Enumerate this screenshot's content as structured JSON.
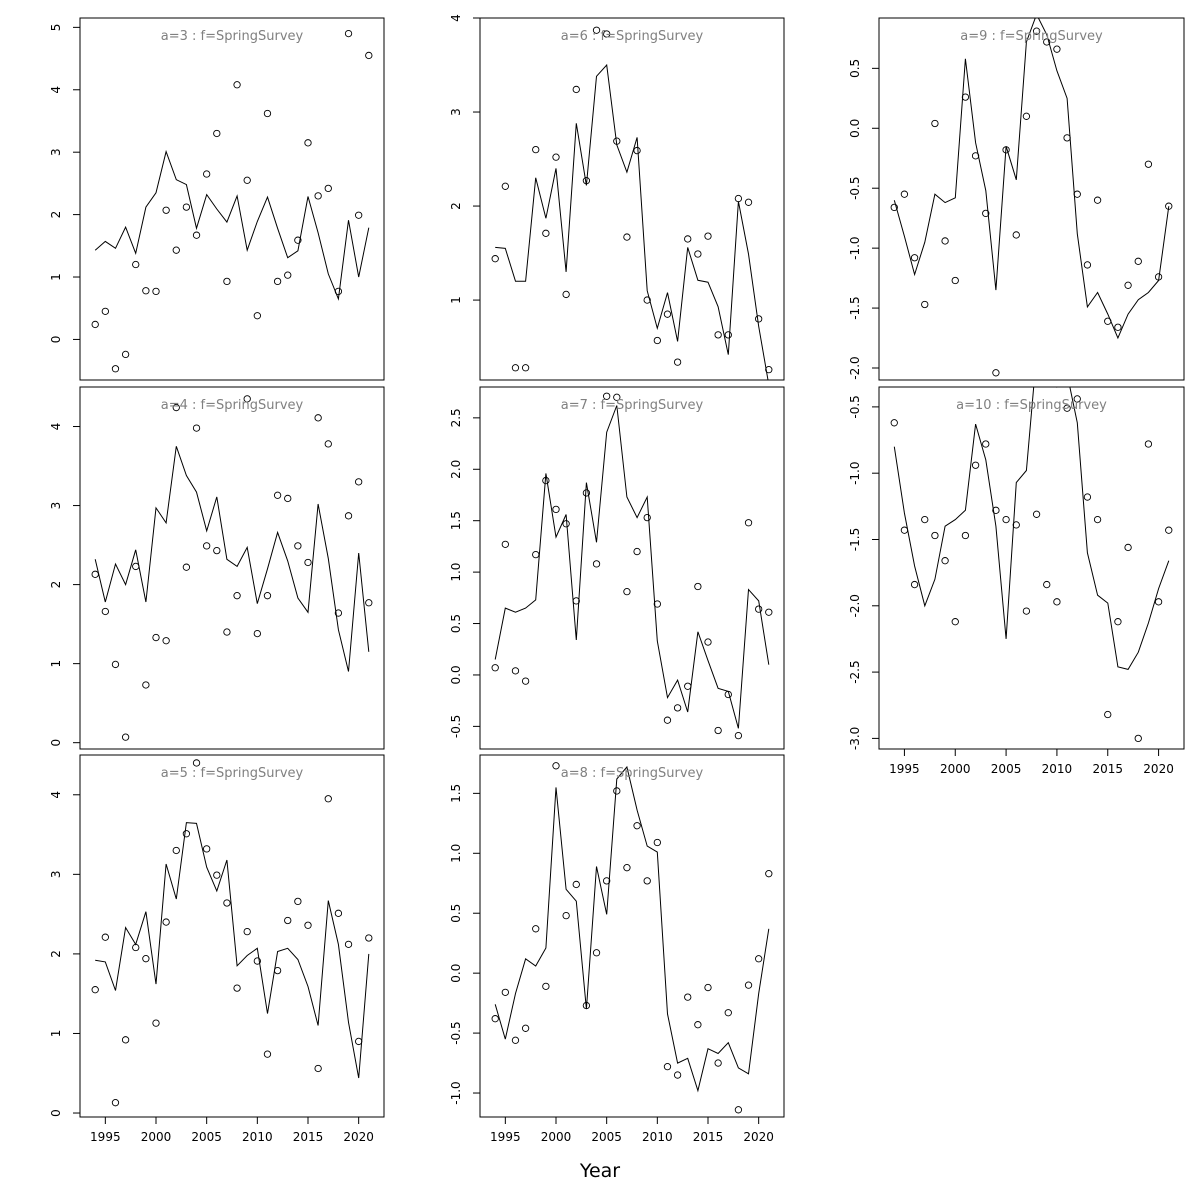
{
  "figure": {
    "xlabel": "Year"
  },
  "chart_data": [
    {
      "type": "scatter",
      "title": "a=3  :  f=SpringSurvey",
      "x": [
        1994,
        1995,
        1996,
        1997,
        1998,
        1999,
        2000,
        2001,
        2002,
        2003,
        2004,
        2005,
        2006,
        2007,
        2008,
        2009,
        2010,
        2011,
        2012,
        2013,
        2014,
        2015,
        2016,
        2017,
        2018,
        2019,
        2020,
        2021
      ],
      "observed": [
        0.24,
        0.45,
        -0.47,
        -0.24,
        1.2,
        0.78,
        0.77,
        2.07,
        1.43,
        2.12,
        1.67,
        2.65,
        3.3,
        0.93,
        4.08,
        2.55,
        0.38,
        3.62,
        0.93,
        1.03,
        1.59,
        3.15,
        2.3,
        2.42,
        0.77,
        4.9,
        1.99,
        4.55
      ],
      "fitted": [
        1.43,
        1.57,
        1.46,
        1.8,
        1.38,
        2.12,
        2.35,
        3.01,
        2.56,
        2.48,
        1.78,
        2.32,
        2.09,
        1.88,
        2.3,
        1.43,
        1.89,
        2.28,
        1.78,
        1.31,
        1.42,
        2.29,
        1.71,
        1.05,
        0.65,
        1.91,
        1.0,
        1.79
      ],
      "xlim": [
        1992.5,
        2022.5
      ],
      "ylim": [
        -0.65,
        5.15
      ],
      "yticks": [
        0,
        1,
        2,
        3,
        4,
        5
      ],
      "ytick_labels": [
        "0",
        "1",
        "2",
        "3",
        "4",
        "5"
      ],
      "xticks": [],
      "xtick_labels": []
    },
    {
      "type": "scatter",
      "title": "a=6  :  f=SpringSurvey",
      "x": [
        1994,
        1995,
        1996,
        1997,
        1998,
        1999,
        2000,
        2001,
        2002,
        2003,
        2004,
        2005,
        2006,
        2007,
        2008,
        2009,
        2010,
        2011,
        2012,
        2013,
        2014,
        2015,
        2016,
        2017,
        2018,
        2019,
        2020,
        2021
      ],
      "observed": [
        1.44,
        2.21,
        0.28,
        0.28,
        2.6,
        1.71,
        2.52,
        1.06,
        3.24,
        2.27,
        3.87,
        3.83,
        2.69,
        1.67,
        2.59,
        1.0,
        0.57,
        0.85,
        0.34,
        1.65,
        1.49,
        1.68,
        0.63,
        0.63,
        2.08,
        2.04,
        0.8,
        0.26
      ],
      "fitted": [
        1.56,
        1.55,
        1.2,
        1.2,
        2.3,
        1.87,
        2.4,
        1.3,
        2.88,
        2.22,
        3.38,
        3.5,
        2.65,
        2.36,
        2.73,
        1.1,
        0.7,
        1.08,
        0.56,
        1.56,
        1.21,
        1.19,
        0.93,
        0.42,
        2.05,
        1.49,
        0.72,
        0.1
      ],
      "xlim": [
        1992.5,
        2022.5
      ],
      "ylim": [
        0.15,
        4.0
      ],
      "yticks": [
        1,
        2,
        3,
        4
      ],
      "ytick_labels": [
        "1",
        "2",
        "3",
        "4"
      ],
      "xticks": [],
      "xtick_labels": []
    },
    {
      "type": "scatter",
      "title": "a=9  :  f=SpringSurvey",
      "x": [
        1994,
        1995,
        1996,
        1997,
        1998,
        1999,
        2000,
        2001,
        2002,
        2003,
        2004,
        2005,
        2006,
        2007,
        2008,
        2009,
        2010,
        2011,
        2012,
        2013,
        2014,
        2015,
        2016,
        2017,
        2018,
        2019,
        2020,
        2021
      ],
      "observed": [
        -0.66,
        -0.55,
        -1.08,
        -1.47,
        0.04,
        -0.94,
        -1.27,
        0.26,
        -0.23,
        -0.71,
        -2.04,
        -0.18,
        -0.89,
        0.1,
        0.81,
        0.72,
        0.66,
        -0.08,
        -0.55,
        -1.14,
        -0.6,
        -1.61,
        -1.66,
        -1.31,
        -1.11,
        -0.3,
        -1.24,
        -0.65
      ],
      "fitted": [
        -0.6,
        -0.9,
        -1.22,
        -0.95,
        -0.55,
        -0.62,
        -0.58,
        0.58,
        -0.12,
        -0.52,
        -1.35,
        -0.15,
        -0.43,
        0.72,
        0.95,
        0.78,
        0.48,
        0.25,
        -0.88,
        -1.49,
        -1.37,
        -1.55,
        -1.75,
        -1.55,
        -1.43,
        -1.37,
        -1.27,
        -0.65
      ],
      "xlim": [
        1992.5,
        2022.5
      ],
      "ylim": [
        -2.1,
        0.92
      ],
      "yticks": [
        -2.0,
        -1.5,
        -1.0,
        -0.5,
        0.0,
        0.5
      ],
      "ytick_labels": [
        "-2.0",
        "-1.5",
        "-1.0",
        "-0.5",
        "0.0",
        "0.5"
      ],
      "xticks": [],
      "xtick_labels": []
    },
    {
      "type": "scatter",
      "title": "a=4  :  f=SpringSurvey",
      "x": [
        1994,
        1995,
        1996,
        1997,
        1998,
        1999,
        2000,
        2001,
        2002,
        2003,
        2004,
        2005,
        2006,
        2007,
        2008,
        2009,
        2010,
        2011,
        2012,
        2013,
        2014,
        2015,
        2016,
        2017,
        2018,
        2019,
        2020,
        2021
      ],
      "observed": [
        2.13,
        1.66,
        0.99,
        0.07,
        2.23,
        0.73,
        1.33,
        1.29,
        4.24,
        2.22,
        3.98,
        2.49,
        2.43,
        1.4,
        1.86,
        4.35,
        1.38,
        1.86,
        3.13,
        3.09,
        2.49,
        2.28,
        4.11,
        3.78,
        1.64,
        2.87,
        3.3,
        1.77
      ],
      "fitted": [
        2.32,
        1.78,
        2.26,
        2.0,
        2.44,
        1.78,
        2.97,
        2.78,
        3.75,
        3.38,
        3.17,
        2.68,
        3.11,
        2.32,
        2.23,
        2.47,
        1.76,
        2.2,
        2.66,
        2.3,
        1.83,
        1.65,
        3.02,
        2.33,
        1.43,
        0.9,
        2.4,
        1.15
      ],
      "xlim": [
        1992.5,
        2022.5
      ],
      "ylim": [
        -0.08,
        4.5
      ],
      "yticks": [
        0,
        1,
        2,
        3,
        4
      ],
      "ytick_labels": [
        "0",
        "1",
        "2",
        "3",
        "4"
      ],
      "xticks": [],
      "xtick_labels": []
    },
    {
      "type": "scatter",
      "title": "a=7  :  f=SpringSurvey",
      "x": [
        1994,
        1995,
        1996,
        1997,
        1998,
        1999,
        2000,
        2001,
        2002,
        2003,
        2004,
        2005,
        2006,
        2007,
        2008,
        2009,
        2010,
        2011,
        2012,
        2013,
        2014,
        2015,
        2016,
        2017,
        2018,
        2019,
        2020,
        2021
      ],
      "observed": [
        0.07,
        1.27,
        0.04,
        -0.06,
        1.17,
        1.89,
        1.61,
        1.47,
        0.72,
        1.77,
        1.08,
        2.71,
        2.7,
        0.81,
        1.2,
        1.53,
        0.69,
        -0.44,
        -0.32,
        -0.11,
        0.86,
        0.32,
        -0.54,
        -0.19,
        -0.59,
        1.48,
        0.64,
        0.61
      ],
      "fitted": [
        0.15,
        0.65,
        0.61,
        0.65,
        0.73,
        1.96,
        1.34,
        1.56,
        0.34,
        1.87,
        1.29,
        2.36,
        2.62,
        1.73,
        1.53,
        1.73,
        0.33,
        -0.22,
        -0.05,
        -0.36,
        0.42,
        0.14,
        -0.13,
        -0.16,
        -0.52,
        0.83,
        0.72,
        0.1
      ],
      "xlim": [
        1992.5,
        2022.5
      ],
      "ylim": [
        -0.72,
        2.8
      ],
      "yticks": [
        -0.5,
        0.0,
        0.5,
        1.0,
        1.5,
        2.0,
        2.5
      ],
      "ytick_labels": [
        "-0.5",
        "0.0",
        "0.5",
        "1.0",
        "1.5",
        "2.0",
        "2.5"
      ],
      "xticks": [],
      "xtick_labels": []
    },
    {
      "type": "scatter",
      "title": "a=10  :  f=SpringSurvey",
      "x": [
        1994,
        1995,
        1996,
        1997,
        1998,
        1999,
        2000,
        2001,
        2002,
        2003,
        2004,
        2005,
        2006,
        2007,
        2008,
        2009,
        2010,
        2011,
        2012,
        2013,
        2014,
        2015,
        2016,
        2017,
        2018,
        2019,
        2020,
        2021
      ],
      "observed": [
        -0.62,
        -1.43,
        -1.84,
        -1.35,
        -1.47,
        -1.66,
        -2.12,
        -1.47,
        -0.94,
        -0.78,
        -1.28,
        -1.35,
        -1.39,
        -2.04,
        -1.31,
        -1.84,
        -1.97,
        -0.51,
        -0.44,
        -1.18,
        -1.35,
        -2.82,
        -2.12,
        -1.56,
        -3.0,
        -0.78,
        -1.97,
        -1.43
      ],
      "fitted": [
        -0.8,
        -1.3,
        -1.7,
        -2.0,
        -1.8,
        -1.4,
        -1.35,
        -1.28,
        -0.63,
        -0.9,
        -1.4,
        -2.25,
        -1.07,
        -0.98,
        -0.1,
        -0.25,
        -0.35,
        -0.25,
        -0.62,
        -1.6,
        -1.92,
        -1.98,
        -2.46,
        -2.48,
        -2.35,
        -2.13,
        -1.87,
        -1.66
      ],
      "xlim": [
        1992.5,
        2022.5
      ],
      "ylim": [
        -3.08,
        -0.35
      ],
      "yticks": [
        -3.0,
        -2.5,
        -2.0,
        -1.5,
        -1.0,
        -0.5
      ],
      "ytick_labels": [
        "-3.0",
        "-2.5",
        "-2.0",
        "-1.5",
        "-1.0",
        "-0.5"
      ],
      "xticks": [
        1995,
        2000,
        2005,
        2010,
        2015,
        2020
      ],
      "xtick_labels": [
        "1995",
        "2000",
        "2005",
        "2010",
        "2015",
        "2020"
      ]
    },
    {
      "type": "scatter",
      "title": "a=5  :  f=SpringSurvey",
      "x": [
        1994,
        1995,
        1996,
        1997,
        1998,
        1999,
        2000,
        2001,
        2002,
        2003,
        2004,
        2005,
        2006,
        2007,
        2008,
        2009,
        2010,
        2011,
        2012,
        2013,
        2014,
        2015,
        2016,
        2017,
        2018,
        2019,
        2020,
        2021
      ],
      "observed": [
        1.55,
        2.21,
        0.13,
        0.92,
        2.08,
        1.94,
        1.13,
        2.4,
        3.3,
        3.51,
        4.4,
        3.32,
        2.99,
        2.64,
        1.57,
        2.28,
        1.91,
        0.74,
        1.79,
        2.42,
        2.66,
        2.36,
        0.56,
        3.95,
        2.51,
        2.12,
        0.9,
        2.2
      ],
      "fitted": [
        1.92,
        1.9,
        1.54,
        2.33,
        2.12,
        2.53,
        1.62,
        3.13,
        2.69,
        3.65,
        3.64,
        3.09,
        2.79,
        3.18,
        1.85,
        1.98,
        2.07,
        1.25,
        2.03,
        2.07,
        1.93,
        1.59,
        1.1,
        2.67,
        2.12,
        1.14,
        0.44,
        2.0
      ],
      "xlim": [
        1992.5,
        2022.5
      ],
      "ylim": [
        -0.05,
        4.5
      ],
      "yticks": [
        0,
        1,
        2,
        3,
        4
      ],
      "ytick_labels": [
        "0",
        "1",
        "2",
        "3",
        "4"
      ],
      "xticks": [
        1995,
        2000,
        2005,
        2010,
        2015,
        2020
      ],
      "xtick_labels": [
        "1995",
        "2000",
        "2005",
        "2010",
        "2015",
        "2020"
      ]
    },
    {
      "type": "scatter",
      "title": "a=8  :  f=SpringSurvey",
      "x": [
        1994,
        1995,
        1996,
        1997,
        1998,
        1999,
        2000,
        2001,
        2002,
        2003,
        2004,
        2005,
        2006,
        2007,
        2008,
        2009,
        2010,
        2011,
        2012,
        2013,
        2014,
        2015,
        2016,
        2017,
        2018,
        2019,
        2020,
        2021
      ],
      "observed": [
        -0.38,
        -0.16,
        -0.56,
        -0.46,
        0.37,
        -0.11,
        1.73,
        0.48,
        0.74,
        -0.27,
        0.17,
        0.77,
        1.52,
        0.88,
        1.23,
        0.77,
        1.09,
        -0.78,
        -0.85,
        -0.2,
        -0.43,
        -0.12,
        -0.75,
        -0.33,
        -1.14,
        -0.1,
        0.12,
        0.83
      ],
      "fitted": [
        -0.26,
        -0.55,
        -0.17,
        0.12,
        0.06,
        0.21,
        1.55,
        0.7,
        0.6,
        -0.3,
        0.89,
        0.49,
        1.62,
        1.72,
        1.36,
        1.06,
        1.01,
        -0.34,
        -0.75,
        -0.71,
        -0.98,
        -0.63,
        -0.67,
        -0.58,
        -0.79,
        -0.84,
        -0.17,
        0.37
      ],
      "xlim": [
        1992.5,
        2022.5
      ],
      "ylim": [
        -1.2,
        1.82
      ],
      "yticks": [
        -1.0,
        -0.5,
        0.0,
        0.5,
        1.0,
        1.5
      ],
      "ytick_labels": [
        "-1.0",
        "-0.5",
        "0.0",
        "0.5",
        "1.0",
        "1.5"
      ],
      "xticks": [
        1995,
        2000,
        2005,
        2010,
        2015,
        2020
      ],
      "xtick_labels": [
        "1995",
        "2000",
        "2005",
        "2010",
        "2015",
        "2020"
      ]
    }
  ]
}
